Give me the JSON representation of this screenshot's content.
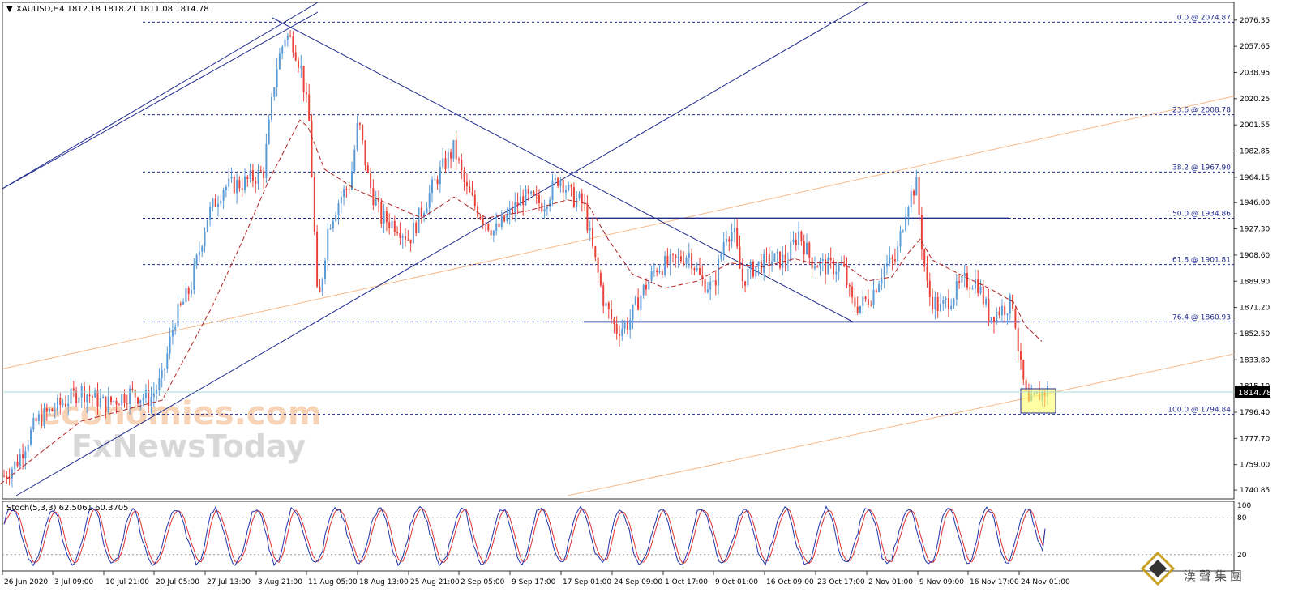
{
  "header": {
    "symbol_line": "XAUUSD,H4  1812.18 1818.21 1811.08 1814.78"
  },
  "chart_data": {
    "type": "candlestick",
    "symbol": "XAUUSD",
    "timeframe": "H4",
    "ohlc_last": {
      "open": 1812.18,
      "high": 1818.21,
      "low": 1811.08,
      "close": 1814.78
    },
    "price_axis_ticks": [
      "2076.35",
      "2057.65",
      "2038.95",
      "2020.25",
      "2001.55",
      "1982.85",
      "1964.15",
      "1946.00",
      "1927.30",
      "1908.60",
      "1889.90",
      "1871.20",
      "1852.50",
      "1833.80",
      "1815.10",
      "1796.40",
      "1777.70",
      "1759.00",
      "1740.85"
    ],
    "ylim": [
      1738,
      2082
    ],
    "current_price_label": "1814.78",
    "x_tick_labels": [
      "26 Jun 2020",
      "3 Jul 09:00",
      "10 Jul 21:00",
      "20 Jul 05:00",
      "27 Jul 13:00",
      "3 Aug 21:00",
      "11 Aug 05:00",
      "18 Aug 13:00",
      "25 Aug 21:00",
      "2 Sep 05:00",
      "9 Sep 17:00",
      "17 Sep 01:00",
      "24 Sep 09:00",
      "1 Oct 17:00",
      "9 Oct 01:00",
      "16 Oct 09:00",
      "23 Oct 17:00",
      "2 Nov 01:00",
      "9 Nov 09:00",
      "16 Nov 17:00",
      "24 Nov 01:00"
    ],
    "fibonacci_levels": [
      {
        "label": "0.0 @ 2074.87",
        "value": 2074.87
      },
      {
        "label": "23.6 @ 2008.78",
        "value": 2008.78
      },
      {
        "label": "38.2 @ 1967.90",
        "value": 1967.9
      },
      {
        "label": "50.0 @ 1934.86",
        "value": 1934.86
      },
      {
        "label": "61.8 @ 1901.81",
        "value": 1901.81
      },
      {
        "label": "76.4 @ 1860.93",
        "value": 1860.93
      },
      {
        "label": "100.0 @ 1794.84",
        "value": 1794.84
      }
    ],
    "price_path": [
      [
        0,
        1748
      ],
      [
        20,
        1760
      ],
      [
        45,
        1790
      ],
      [
        70,
        1800
      ],
      [
        100,
        1812
      ],
      [
        130,
        1802
      ],
      [
        160,
        1810
      ],
      [
        185,
        1806
      ],
      [
        200,
        1820
      ],
      [
        215,
        1862
      ],
      [
        235,
        1885
      ],
      [
        255,
        1935
      ],
      [
        275,
        1957
      ],
      [
        300,
        1960
      ],
      [
        325,
        1968
      ],
      [
        340,
        2040
      ],
      [
        352,
        2066
      ],
      [
        362,
        2060
      ],
      [
        372,
        2040
      ],
      [
        382,
        2000
      ],
      [
        392,
        1868
      ],
      [
        405,
        1930
      ],
      [
        420,
        1950
      ],
      [
        432,
        1960
      ],
      [
        442,
        2005
      ],
      [
        455,
        1960
      ],
      [
        470,
        1935
      ],
      [
        490,
        1930
      ],
      [
        505,
        1920
      ],
      [
        520,
        1940
      ],
      [
        540,
        1965
      ],
      [
        560,
        1985
      ],
      [
        575,
        1955
      ],
      [
        590,
        1940
      ],
      [
        610,
        1925
      ],
      [
        625,
        1935
      ],
      [
        645,
        1950
      ],
      [
        670,
        1945
      ],
      [
        690,
        1965
      ],
      [
        705,
        1950
      ],
      [
        720,
        1945
      ],
      [
        730,
        1915
      ],
      [
        745,
        1875
      ],
      [
        760,
        1855
      ],
      [
        775,
        1860
      ],
      [
        790,
        1880
      ],
      [
        810,
        1900
      ],
      [
        830,
        1903
      ],
      [
        850,
        1910
      ],
      [
        865,
        1890
      ],
      [
        880,
        1885
      ],
      [
        895,
        1925
      ],
      [
        905,
        1925
      ],
      [
        915,
        1890
      ],
      [
        930,
        1900
      ],
      [
        950,
        1905
      ],
      [
        970,
        1905
      ],
      [
        985,
        1925
      ],
      [
        1000,
        1905
      ],
      [
        1020,
        1900
      ],
      [
        1040,
        1900
      ],
      [
        1050,
        1875
      ],
      [
        1060,
        1872
      ],
      [
        1075,
        1880
      ],
      [
        1090,
        1900
      ],
      [
        1105,
        1905
      ],
      [
        1118,
        1945
      ],
      [
        1130,
        1960
      ],
      [
        1138,
        1910
      ],
      [
        1145,
        1880
      ],
      [
        1160,
        1870
      ],
      [
        1175,
        1880
      ],
      [
        1190,
        1890
      ],
      [
        1205,
        1890
      ],
      [
        1220,
        1865
      ],
      [
        1235,
        1870
      ],
      [
        1250,
        1875
      ],
      [
        1258,
        1830
      ],
      [
        1268,
        1800
      ],
      [
        1280,
        1808
      ],
      [
        1292,
        1812
      ]
    ],
    "moving_average": [
      [
        0,
        1745
      ],
      [
        100,
        1790
      ],
      [
        200,
        1805
      ],
      [
        260,
        1870
      ],
      [
        300,
        1920
      ],
      [
        330,
        1960
      ],
      [
        370,
        2005
      ],
      [
        380,
        2000
      ],
      [
        400,
        1970
      ],
      [
        440,
        1955
      ],
      [
        480,
        1945
      ],
      [
        520,
        1935
      ],
      [
        560,
        1950
      ],
      [
        600,
        1935
      ],
      [
        650,
        1940
      ],
      [
        700,
        1948
      ],
      [
        725,
        1945
      ],
      [
        750,
        1920
      ],
      [
        780,
        1895
      ],
      [
        820,
        1885
      ],
      [
        860,
        1890
      ],
      [
        900,
        1903
      ],
      [
        940,
        1900
      ],
      [
        980,
        1906
      ],
      [
        1000,
        1903
      ],
      [
        1040,
        1903
      ],
      [
        1070,
        1890
      ],
      [
        1100,
        1893
      ],
      [
        1120,
        1910
      ],
      [
        1135,
        1920
      ],
      [
        1150,
        1905
      ],
      [
        1190,
        1893
      ],
      [
        1220,
        1885
      ],
      [
        1250,
        1875
      ],
      [
        1265,
        1858
      ],
      [
        1285,
        1847
      ]
    ],
    "stochastic": {
      "label": "Stoch(5,3,3) 62.5061 60.3705",
      "k": 62.5061,
      "d": 60.3705,
      "ylim": [
        0,
        100
      ],
      "axis_ticks": [
        "100",
        "80",
        "20"
      ]
    }
  },
  "watermark": {
    "line1": "economies.com",
    "line2": "FxNewsToday"
  },
  "colors": {
    "bull": "#5b9bd5",
    "bear": "#e8423b",
    "trendline": "#1f2a8c",
    "fib": "#1f2a8c",
    "ma": "#b22222",
    "channel_orange": "#f6b98a",
    "stoch_k": "#2233aa",
    "stoch_d": "#dd3333",
    "highlight_box": "#ffff66"
  }
}
